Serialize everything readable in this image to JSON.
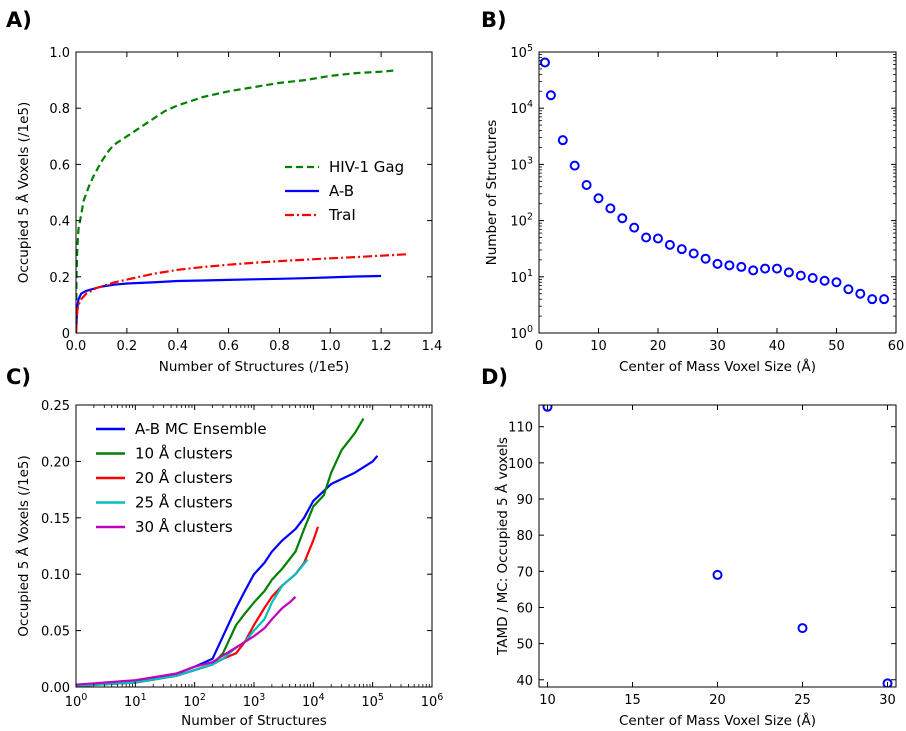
{
  "colors": {
    "green": "#007f00",
    "blue": "#0000ff",
    "red": "#ff0000",
    "cyan": "#00bfbf",
    "magenta": "#bf00bf"
  },
  "chart_data": [
    {
      "panel_label": "A)",
      "type": "line",
      "xlabel": "Number of Structures (/1e5)",
      "ylabel": "Occupied 5 Å Voxels (/1e5)",
      "xlim": [
        0,
        1.4
      ],
      "ylim": [
        0,
        1.0
      ],
      "xticks": [
        "0.0",
        "0.2",
        "0.4",
        "0.6",
        "0.8",
        "1.0",
        "1.2",
        "1.4"
      ],
      "yticks": [
        "0",
        "0.2",
        "0.4",
        "0.6",
        "0.8",
        "1.0"
      ],
      "legend_position": "center-right",
      "series": [
        {
          "name": "HIV-1 Gag",
          "style": "dashed",
          "color": "green",
          "x": [
            0,
            0.002,
            0.005,
            0.01,
            0.02,
            0.03,
            0.05,
            0.07,
            0.1,
            0.13,
            0.15,
            0.2,
            0.25,
            0.3,
            0.35,
            0.4,
            0.5,
            0.6,
            0.7,
            0.8,
            0.9,
            1.0,
            1.1,
            1.2,
            1.26
          ],
          "y": [
            0,
            0.2,
            0.3,
            0.37,
            0.42,
            0.47,
            0.52,
            0.56,
            0.61,
            0.65,
            0.67,
            0.7,
            0.73,
            0.76,
            0.79,
            0.81,
            0.84,
            0.86,
            0.875,
            0.89,
            0.9,
            0.915,
            0.925,
            0.93,
            0.935
          ]
        },
        {
          "name": "A-B",
          "style": "solid",
          "color": "blue",
          "x": [
            0,
            0.005,
            0.01,
            0.02,
            0.04,
            0.06,
            0.08,
            0.1,
            0.15,
            0.2,
            0.3,
            0.4,
            0.5,
            0.6,
            0.7,
            0.8,
            0.9,
            1.0,
            1.1,
            1.2
          ],
          "y": [
            0,
            0.09,
            0.12,
            0.14,
            0.15,
            0.155,
            0.16,
            0.165,
            0.172,
            0.176,
            0.18,
            0.185,
            0.187,
            0.189,
            0.191,
            0.193,
            0.195,
            0.198,
            0.201,
            0.203
          ]
        },
        {
          "name": "TraI",
          "style": "dashdot",
          "color": "red",
          "x": [
            0,
            0.005,
            0.01,
            0.02,
            0.04,
            0.06,
            0.08,
            0.1,
            0.15,
            0.2,
            0.3,
            0.4,
            0.5,
            0.6,
            0.7,
            0.8,
            0.9,
            1.0,
            1.1,
            1.2,
            1.3
          ],
          "y": [
            0,
            0.08,
            0.1,
            0.12,
            0.14,
            0.15,
            0.16,
            0.165,
            0.18,
            0.19,
            0.21,
            0.225,
            0.235,
            0.243,
            0.25,
            0.256,
            0.261,
            0.266,
            0.27,
            0.275,
            0.28
          ]
        }
      ]
    },
    {
      "panel_label": "B)",
      "type": "scatter",
      "xlabel": "Center of Mass Voxel Size (Å)",
      "ylabel": "Number of Structures",
      "xlim": [
        0,
        60
      ],
      "ylim_log10": [
        0,
        5
      ],
      "yscale": "log",
      "xticks": [
        "0",
        "10",
        "20",
        "30",
        "40",
        "50",
        "60"
      ],
      "yticks": [
        "10",
        "10",
        "10",
        "10",
        "10",
        "10"
      ],
      "ytick_exponents": [
        "0",
        "1",
        "2",
        "3",
        "4",
        "5"
      ],
      "series": [
        {
          "color": "blue",
          "x": [
            1,
            2,
            4,
            6,
            8,
            10,
            12,
            14,
            16,
            18,
            20,
            22,
            24,
            26,
            28,
            30,
            32,
            34,
            36,
            38,
            40,
            42,
            44,
            46,
            48,
            50,
            52,
            54,
            56,
            58
          ],
          "y": [
            65000,
            17000,
            2700,
            950,
            430,
            250,
            165,
            110,
            75,
            50,
            48,
            37,
            31,
            26,
            21,
            17,
            16,
            15,
            13,
            14,
            14,
            12,
            10.5,
            9.5,
            8.5,
            8,
            6,
            5,
            4,
            4
          ]
        }
      ]
    },
    {
      "panel_label": "C)",
      "type": "line",
      "xlabel": "Number of Structures",
      "ylabel": "Occupied 5 Å Voxels (/1e5)",
      "xscale": "log",
      "xlim_log10": [
        0,
        6
      ],
      "ylim": [
        0,
        0.25
      ],
      "xticks": [
        "10",
        "10",
        "10",
        "10",
        "10",
        "10",
        "10"
      ],
      "xtick_exponents": [
        "0",
        "1",
        "2",
        "3",
        "4",
        "5",
        "6"
      ],
      "yticks": [
        "0.00",
        "0.05",
        "0.10",
        "0.15",
        "0.20",
        "0.25"
      ],
      "legend_position": "upper-left",
      "series": [
        {
          "name": "A-B MC Ensemble",
          "color": "blue",
          "x": [
            1,
            10,
            50,
            100,
            200,
            300,
            500,
            700,
            1000,
            1500,
            2000,
            3000,
            5000,
            7000,
            10000,
            20000,
            50000,
            100000,
            120000
          ],
          "y": [
            0.002,
            0.005,
            0.012,
            0.018,
            0.025,
            0.045,
            0.07,
            0.085,
            0.1,
            0.11,
            0.12,
            0.13,
            0.14,
            0.15,
            0.165,
            0.18,
            0.19,
            0.2,
            0.205
          ]
        },
        {
          "name": "10 Å clusters",
          "color": "green",
          "x": [
            1,
            10,
            50,
            100,
            200,
            300,
            500,
            700,
            1000,
            1500,
            2000,
            3000,
            5000,
            7000,
            10000,
            15000,
            20000,
            30000,
            50000,
            70000
          ],
          "y": [
            0.001,
            0.004,
            0.01,
            0.015,
            0.02,
            0.03,
            0.055,
            0.065,
            0.075,
            0.085,
            0.095,
            0.105,
            0.12,
            0.14,
            0.16,
            0.17,
            0.19,
            0.21,
            0.225,
            0.238
          ]
        },
        {
          "name": "20 Å clusters",
          "color": "red",
          "x": [
            1,
            10,
            50,
            100,
            200,
            300,
            500,
            700,
            1000,
            1500,
            2000,
            3000,
            5000,
            7000,
            10000,
            12000
          ],
          "y": [
            0.001,
            0.004,
            0.01,
            0.015,
            0.02,
            0.025,
            0.03,
            0.04,
            0.055,
            0.07,
            0.08,
            0.09,
            0.1,
            0.11,
            0.13,
            0.142
          ]
        },
        {
          "name": "25 Å clusters",
          "color": "cyan",
          "x": [
            1,
            10,
            50,
            100,
            200,
            300,
            500,
            700,
            1000,
            1500,
            2000,
            3000,
            5000,
            8000
          ],
          "y": [
            0.001,
            0.004,
            0.01,
            0.015,
            0.02,
            0.025,
            0.035,
            0.04,
            0.05,
            0.06,
            0.075,
            0.09,
            0.1,
            0.113
          ]
        },
        {
          "name": "30 Å clusters",
          "color": "magenta",
          "x": [
            1,
            10,
            50,
            100,
            200,
            300,
            500,
            700,
            1000,
            1500,
            2000,
            3000,
            4000,
            5000
          ],
          "y": [
            0.002,
            0.006,
            0.012,
            0.018,
            0.022,
            0.028,
            0.035,
            0.04,
            0.045,
            0.052,
            0.06,
            0.07,
            0.075,
            0.08
          ]
        }
      ]
    },
    {
      "panel_label": "D)",
      "type": "scatter",
      "xlabel": "Center of Mass Voxel Size (Å)",
      "ylabel": "TAMD / MC: Occupied 5 Å voxels",
      "xlim": [
        9.5,
        30.5
      ],
      "ylim": [
        38,
        116
      ],
      "xticks": [
        "10",
        "15",
        "20",
        "25",
        "30"
      ],
      "yticks": [
        "40",
        "50",
        "60",
        "70",
        "80",
        "90",
        "100",
        "110"
      ],
      "series": [
        {
          "color": "blue",
          "x": [
            10,
            20,
            25,
            30
          ],
          "y": [
            115.5,
            69,
            54.3,
            39
          ]
        }
      ]
    }
  ]
}
